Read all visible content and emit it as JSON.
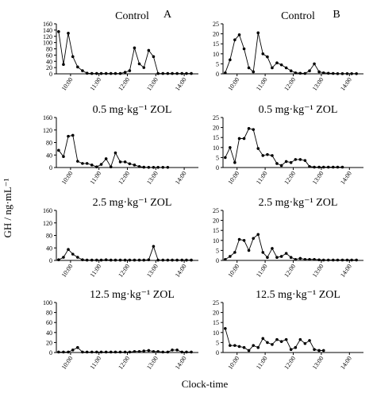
{
  "figure": {
    "ylabel": "GH / ng·mL⁻¹",
    "xlabel": "Clock-time",
    "columns": [
      "A",
      "B"
    ]
  },
  "chart_data": [
    {
      "type": "line",
      "panel": "A",
      "title": "Control",
      "ylim": [
        0,
        160
      ],
      "yticks": [
        0,
        20,
        40,
        60,
        80,
        100,
        120,
        140,
        160
      ],
      "xlim": [
        9.5,
        14.5
      ],
      "xticks": [
        10,
        11,
        12,
        13,
        14
      ],
      "xticklabels": [
        "10:00",
        "11:00",
        "12:00",
        "13:00",
        "14:00"
      ],
      "x": [
        9.58,
        9.75,
        9.92,
        10.08,
        10.25,
        10.42,
        10.58,
        10.75,
        10.92,
        11.08,
        11.25,
        11.42,
        11.58,
        11.75,
        11.92,
        12.08,
        12.25,
        12.42,
        12.58,
        12.75,
        12.92,
        13.08,
        13.25,
        13.42,
        13.58,
        13.75,
        13.92,
        14.08,
        14.25
      ],
      "values": [
        135,
        30,
        130,
        55,
        22,
        10,
        2,
        1,
        1,
        1,
        1,
        1,
        1,
        1,
        5,
        10,
        83,
        32,
        20,
        75,
        55,
        1,
        1,
        1,
        1,
        1,
        1,
        1,
        1
      ]
    },
    {
      "type": "line",
      "panel": "B",
      "title": "Control",
      "ylim": [
        0,
        25
      ],
      "yticks": [
        0,
        5,
        10,
        15,
        20,
        25
      ],
      "xlim": [
        9.5,
        14.5
      ],
      "xticks": [
        10,
        11,
        12,
        13,
        14
      ],
      "xticklabels": [
        "10:00",
        "11:00",
        "12:00",
        "13:00",
        "14:00"
      ],
      "x": [
        9.58,
        9.75,
        9.92,
        10.08,
        10.25,
        10.42,
        10.58,
        10.75,
        10.92,
        11.08,
        11.25,
        11.42,
        11.58,
        11.75,
        11.92,
        12.08,
        12.25,
        12.42,
        12.58,
        12.75,
        12.92,
        13.08,
        13.25,
        13.42,
        13.58,
        13.75,
        13.92,
        14.08,
        14.25
      ],
      "values": [
        0.5,
        7,
        17,
        19.5,
        12.5,
        3,
        1,
        20.5,
        10,
        8.5,
        3,
        5.5,
        4.5,
        3,
        1.5,
        0.5,
        0.3,
        0.2,
        1.5,
        5,
        1,
        0.5,
        0.3,
        0.2,
        0.1,
        0.1,
        0.1,
        0.1,
        0.1
      ]
    },
    {
      "type": "line",
      "panel": "A",
      "title": "0.5 mg·kg⁻¹ ZOL",
      "ylim": [
        0,
        160
      ],
      "yticks": [
        0,
        40,
        80,
        120,
        160
      ],
      "xlim": [
        9.5,
        14.5
      ],
      "xticks": [
        10,
        11,
        12,
        13,
        14
      ],
      "xticklabels": [
        "10:00",
        "11:00",
        "12:00",
        "13:00",
        "14:00"
      ],
      "x": [
        9.58,
        9.75,
        9.92,
        10.08,
        10.25,
        10.42,
        10.58,
        10.75,
        10.92,
        11.08,
        11.25,
        11.42,
        11.58,
        11.75,
        11.92,
        12.08,
        12.25,
        12.42,
        12.58,
        12.75,
        12.92,
        13.08,
        13.25,
        13.42
      ],
      "values": [
        55,
        35,
        100,
        103,
        20,
        13,
        13,
        8,
        2,
        10,
        28,
        2,
        47,
        18,
        18,
        12,
        8,
        3,
        1,
        0.5,
        0.5,
        0.5,
        0.5,
        0.5
      ]
    },
    {
      "type": "line",
      "panel": "B",
      "title": "0.5 mg·kg⁻¹ ZOL",
      "ylim": [
        0,
        25
      ],
      "yticks": [
        0,
        5,
        10,
        15,
        20,
        25
      ],
      "xlim": [
        9.5,
        14.5
      ],
      "xticks": [
        10,
        11,
        12,
        13,
        14
      ],
      "xticklabels": [
        "10:00",
        "11:00",
        "12:00",
        "13:00",
        "14:00"
      ],
      "x": [
        9.58,
        9.75,
        9.92,
        10.08,
        10.25,
        10.42,
        10.58,
        10.75,
        10.92,
        11.08,
        11.25,
        11.42,
        11.58,
        11.75,
        11.92,
        12.08,
        12.25,
        12.42,
        12.58,
        12.75,
        12.92,
        13.08,
        13.25,
        13.42,
        13.58,
        13.75
      ],
      "values": [
        5,
        10,
        2.5,
        14.5,
        14.5,
        19.5,
        19,
        9.5,
        6,
        6.5,
        6,
        2,
        1,
        3,
        2.5,
        4,
        4,
        3.5,
        0.5,
        0.2,
        0.2,
        0.2,
        0.2,
        0.2,
        0.2,
        0.2
      ]
    },
    {
      "type": "line",
      "panel": "A",
      "title": "2.5 mg·kg⁻¹ ZOL",
      "ylim": [
        0,
        160
      ],
      "yticks": [
        0,
        40,
        80,
        120,
        160
      ],
      "xlim": [
        9.5,
        14.5
      ],
      "xticks": [
        10,
        11,
        12,
        13,
        14
      ],
      "xticklabels": [
        "10:00",
        "11:00",
        "12:00",
        "13:00",
        "14:00"
      ],
      "x": [
        9.58,
        9.75,
        9.92,
        10.08,
        10.25,
        10.42,
        10.58,
        10.75,
        10.92,
        11.08,
        11.25,
        11.42,
        11.58,
        11.75,
        11.92,
        12.08,
        12.25,
        12.42,
        12.58,
        12.75,
        12.92,
        13.08,
        13.25,
        13.42,
        13.58,
        13.75,
        13.92,
        14.08,
        14.25
      ],
      "values": [
        2,
        10,
        35,
        20,
        10,
        2,
        1,
        1,
        1,
        1,
        2,
        1,
        1,
        1,
        1,
        1,
        1,
        1,
        1,
        2,
        45,
        1,
        1,
        1,
        1,
        1,
        1,
        1,
        1
      ]
    },
    {
      "type": "line",
      "panel": "B",
      "title": "2.5 mg·kg⁻¹ ZOL",
      "ylim": [
        0,
        25
      ],
      "yticks": [
        0,
        5,
        10,
        15,
        20,
        25
      ],
      "xlim": [
        9.5,
        14.5
      ],
      "xticks": [
        10,
        11,
        12,
        13,
        14
      ],
      "xticklabels": [
        "10:00",
        "11:00",
        "12:00",
        "13:00",
        "14:00"
      ],
      "x": [
        9.58,
        9.75,
        9.92,
        10.08,
        10.25,
        10.42,
        10.58,
        10.75,
        10.92,
        11.08,
        11.25,
        11.42,
        11.58,
        11.75,
        11.92,
        12.08,
        12.25,
        12.42,
        12.58,
        12.75,
        12.92,
        13.08,
        13.25,
        13.42,
        13.58,
        13.75,
        13.92,
        14.08,
        14.25
      ],
      "values": [
        0.5,
        2,
        4,
        10.5,
        10,
        5,
        11,
        13,
        4,
        1.5,
        6,
        1.5,
        2,
        3.5,
        1.5,
        0.5,
        1,
        0.5,
        0.5,
        0.5,
        0.3,
        0.2,
        0.2,
        0.2,
        0.2,
        0.2,
        0.2,
        0.2,
        0.2
      ]
    },
    {
      "type": "line",
      "panel": "A",
      "title": "12.5 mg·kg⁻¹ ZOL",
      "ylim": [
        0,
        100
      ],
      "yticks": [
        0,
        20,
        40,
        60,
        80,
        100
      ],
      "xlim": [
        9.5,
        14.5
      ],
      "xticks": [
        10,
        11,
        12,
        13,
        14
      ],
      "xticklabels": [
        "10:00",
        "11:00",
        "12:00",
        "13:00",
        "14:00"
      ],
      "x": [
        9.58,
        9.75,
        9.92,
        10.08,
        10.25,
        10.42,
        10.58,
        10.75,
        10.92,
        11.08,
        11.25,
        11.42,
        11.58,
        11.75,
        11.92,
        12.08,
        12.25,
        12.42,
        12.58,
        12.75,
        12.92,
        13.08,
        13.25,
        13.42,
        13.58,
        13.75,
        13.92,
        14.08,
        14.25
      ],
      "values": [
        1,
        1,
        1,
        5,
        10,
        1,
        1,
        1,
        1,
        1,
        1,
        1,
        1,
        1,
        1,
        1,
        2,
        2,
        3,
        4,
        2,
        2,
        1,
        1,
        5,
        5,
        1,
        1,
        1
      ]
    },
    {
      "type": "line",
      "panel": "B",
      "title": "12.5 mg·kg⁻¹ ZOL",
      "ylim": [
        0,
        25
      ],
      "yticks": [
        0,
        5,
        10,
        15,
        20,
        25
      ],
      "xlim": [
        9.5,
        14.5
      ],
      "xticks": [
        10,
        11,
        12,
        13,
        14
      ],
      "xticklabels": [
        "10:00",
        "11:00",
        "12:00",
        "13:00",
        "14:00"
      ],
      "x": [
        9.58,
        9.75,
        9.92,
        10.08,
        10.25,
        10.42,
        10.58,
        10.75,
        10.92,
        11.08,
        11.25,
        11.42,
        11.58,
        11.75,
        11.92,
        12.08,
        12.25,
        12.42,
        12.58,
        12.75,
        12.92,
        13.08
      ],
      "values": [
        12,
        3.5,
        3.5,
        3,
        2.5,
        1,
        3.5,
        2.5,
        7,
        5,
        4,
        6.5,
        5.5,
        6.5,
        1.5,
        2.5,
        6.5,
        4.5,
        6,
        1.5,
        1,
        1
      ]
    }
  ]
}
